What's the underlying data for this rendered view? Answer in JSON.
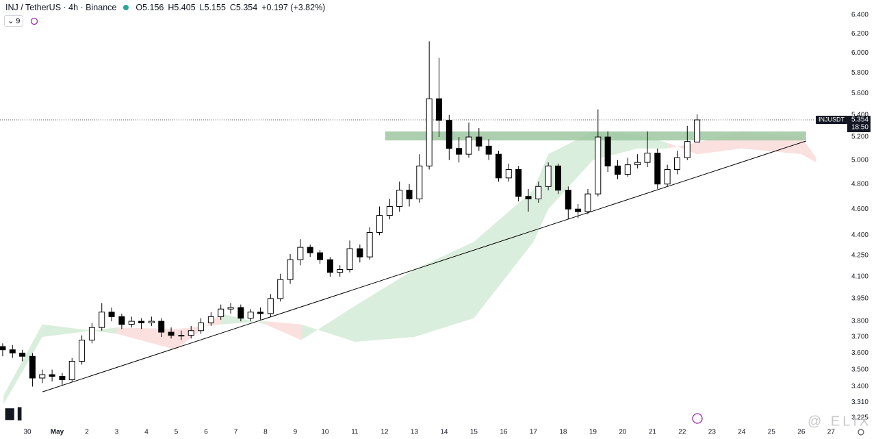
{
  "chart_data": {
    "type": "candlestick",
    "title": "INJ / TetherUS · 4h · Binance",
    "legend_values": [
      "O5.156",
      "H5.405",
      "L5.155",
      "C5.354",
      "+0.197 (+3.82%)"
    ],
    "indicator_count": "9",
    "symbol": "INJUSDT",
    "last_price": 5.354,
    "countdown": "18:50",
    "watermark": "@ ELIX",
    "log_scale": true,
    "grid": false,
    "up_color": "#ffffff",
    "down_color": "#000000",
    "border_color": "#000000",
    "xlim": [
      -0.92,
      27.36
    ],
    "ylim": [
      3.187,
      6.566
    ],
    "xticks": [
      {
        "value": 0,
        "label": "30"
      },
      {
        "value": 1,
        "label": "May"
      },
      2,
      3,
      4,
      5,
      6,
      7,
      8,
      9,
      10,
      11,
      12,
      13,
      14,
      15,
      16,
      17,
      18,
      19,
      20,
      21,
      22,
      23,
      24,
      25,
      26,
      27
    ],
    "yticks": [
      {
        "value": 6.4,
        "label": "6.400"
      },
      {
        "value": 6.2,
        "label": "6.200"
      },
      {
        "value": 6.0,
        "label": "6.000"
      },
      {
        "value": 5.8,
        "label": "5.800"
      },
      {
        "value": 5.6,
        "label": "5.600"
      },
      {
        "value": 5.4,
        "label": "5.400"
      },
      {
        "value": 5.2,
        "label": "5.200"
      },
      {
        "value": 5.0,
        "label": "5.000"
      },
      {
        "value": 4.8,
        "label": "4.800"
      },
      {
        "value": 4.6,
        "label": "4.600"
      },
      {
        "value": 4.4,
        "label": "4.400"
      },
      {
        "value": 4.25,
        "label": "4.250"
      },
      {
        "value": 4.1,
        "label": "4.100"
      },
      {
        "value": 3.95,
        "label": "3.950"
      },
      {
        "value": 3.8,
        "label": "3.800"
      },
      {
        "value": 3.7,
        "label": "3.700"
      },
      {
        "value": 3.6,
        "label": "3.600"
      },
      {
        "value": 3.5,
        "label": "3.500"
      },
      {
        "value": 3.4,
        "label": "3.400"
      },
      {
        "value": 3.31,
        "label": "3.310"
      },
      {
        "value": 3.225,
        "label": "3.225"
      }
    ],
    "candles": {
      "x": [
        -0.83,
        -0.5,
        -0.17,
        0.17,
        0.5,
        0.83,
        1.17,
        1.5,
        1.83,
        2.17,
        2.5,
        2.83,
        3.17,
        3.5,
        3.83,
        4.17,
        4.5,
        4.83,
        5.17,
        5.5,
        5.83,
        6.17,
        6.5,
        6.83,
        7.17,
        7.5,
        7.83,
        8.17,
        8.5,
        8.83,
        9.17,
        9.5,
        9.83,
        10.17,
        10.5,
        10.83,
        11.17,
        11.5,
        11.83,
        12.17,
        12.5,
        12.83,
        13.17,
        13.5,
        13.83,
        14.17,
        14.5,
        14.83,
        15.17,
        15.5,
        15.83,
        16.17,
        16.5,
        16.83,
        17.17,
        17.5,
        17.83,
        18.17,
        18.5,
        18.83,
        19.17,
        19.5,
        19.83,
        20.17,
        20.5,
        20.83,
        21.17,
        21.5,
        21.83,
        22.17,
        22.5
      ],
      "open": [
        3.64,
        3.62,
        3.6,
        3.58,
        3.45,
        3.47,
        3.46,
        3.44,
        3.55,
        3.68,
        3.76,
        3.86,
        3.83,
        3.78,
        3.8,
        3.79,
        3.8,
        3.73,
        3.71,
        3.71,
        3.74,
        3.79,
        3.83,
        3.88,
        3.89,
        3.82,
        3.86,
        3.85,
        3.95,
        4.08,
        4.22,
        4.31,
        4.27,
        4.22,
        4.13,
        4.15,
        4.3,
        4.24,
        4.42,
        4.55,
        4.62,
        4.75,
        4.68,
        4.95,
        5.55,
        5.35,
        5.1,
        5.05,
        5.2,
        5.12,
        5.05,
        4.85,
        4.92,
        4.7,
        4.68,
        4.78,
        4.95,
        4.75,
        4.6,
        4.58,
        4.72,
        5.2,
        4.95,
        4.88,
        4.96,
        4.98,
        5.06,
        4.8,
        4.92,
        5.02,
        5.156
      ],
      "high": [
        3.66,
        3.65,
        3.62,
        3.6,
        3.5,
        3.5,
        3.48,
        3.57,
        3.71,
        3.79,
        3.92,
        3.89,
        3.85,
        3.83,
        3.82,
        3.83,
        3.82,
        3.76,
        3.74,
        3.77,
        3.82,
        3.86,
        3.91,
        3.92,
        3.91,
        3.88,
        3.89,
        3.98,
        4.12,
        4.26,
        4.37,
        4.33,
        4.29,
        4.24,
        4.18,
        4.36,
        4.33,
        4.46,
        4.62,
        4.68,
        4.82,
        4.8,
        5.05,
        6.12,
        5.95,
        5.4,
        5.2,
        5.33,
        5.28,
        5.18,
        5.08,
        4.97,
        4.95,
        4.76,
        4.82,
        4.98,
        4.97,
        4.78,
        4.64,
        4.76,
        5.45,
        5.25,
        5.0,
        5.02,
        5.05,
        5.25,
        5.1,
        4.96,
        5.08,
        5.3,
        5.405
      ],
      "low": [
        3.58,
        3.57,
        3.55,
        3.4,
        3.42,
        3.43,
        3.41,
        3.43,
        3.53,
        3.66,
        3.74,
        3.8,
        3.75,
        3.76,
        3.75,
        3.77,
        3.7,
        3.69,
        3.68,
        3.69,
        3.72,
        3.77,
        3.81,
        3.85,
        3.8,
        3.8,
        3.81,
        3.83,
        3.93,
        4.05,
        4.18,
        4.24,
        4.19,
        4.1,
        4.1,
        4.13,
        4.2,
        4.22,
        4.4,
        4.52,
        4.58,
        4.62,
        4.65,
        4.92,
        5.2,
        5.0,
        4.98,
        5.02,
        5.08,
        5.0,
        4.82,
        4.82,
        4.66,
        4.58,
        4.65,
        4.75,
        4.72,
        4.52,
        4.53,
        4.56,
        4.7,
        4.9,
        4.84,
        4.86,
        4.93,
        4.94,
        4.76,
        4.78,
        4.88,
        5.0,
        5.155
      ],
      "close": [
        3.62,
        3.6,
        3.58,
        3.45,
        3.47,
        3.46,
        3.44,
        3.55,
        3.68,
        3.76,
        3.86,
        3.83,
        3.78,
        3.8,
        3.79,
        3.8,
        3.73,
        3.71,
        3.71,
        3.74,
        3.79,
        3.83,
        3.88,
        3.89,
        3.82,
        3.86,
        3.85,
        3.95,
        4.08,
        4.22,
        4.31,
        4.27,
        4.22,
        4.13,
        4.15,
        4.3,
        4.24,
        4.42,
        4.55,
        4.62,
        4.75,
        4.68,
        4.95,
        5.55,
        5.35,
        5.1,
        5.05,
        5.2,
        5.12,
        5.05,
        4.85,
        4.92,
        4.7,
        4.68,
        4.78,
        4.95,
        4.75,
        4.6,
        4.58,
        4.72,
        5.2,
        4.95,
        4.88,
        4.96,
        4.98,
        5.06,
        4.8,
        4.92,
        5.02,
        5.16,
        5.354
      ]
    },
    "cloud": {
      "x": [
        -0.8,
        0.5,
        3,
        5,
        6.5,
        8,
        9.2,
        11,
        13,
        15,
        17,
        17.5,
        19,
        20.5,
        21.5,
        22.5,
        24,
        26,
        26.5
      ],
      "span_a": [
        3.35,
        3.78,
        3.72,
        3.62,
        3.85,
        3.78,
        3.68,
        3.9,
        4.15,
        4.35,
        4.75,
        5.05,
        5.25,
        5.22,
        5.15,
        5.05,
        5.1,
        5.05,
        4.98
      ],
      "span_b": [
        3.3,
        3.7,
        3.76,
        3.75,
        3.78,
        3.8,
        3.78,
        3.67,
        3.7,
        3.82,
        4.35,
        4.6,
        5.0,
        5.1,
        5.1,
        5.15,
        5.25,
        5.2,
        5.02
      ],
      "up_color": "#d9eedc",
      "down_color": "#fbe0e0"
    },
    "zone": {
      "x": [
        12.02,
        26.16
      ],
      "y": [
        5.17,
        5.25
      ],
      "color": "#9cc7a1"
    },
    "trendline": {
      "x": [
        0.51,
        26.16
      ],
      "y": [
        3.37,
        5.165
      ],
      "color": "#000000"
    }
  }
}
